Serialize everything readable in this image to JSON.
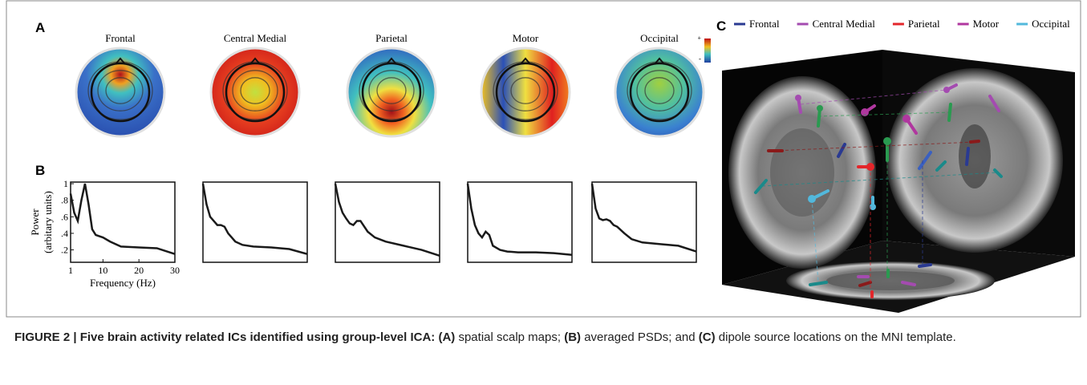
{
  "panel_a": {
    "label": "A",
    "titles": [
      "Frontal",
      "Central Medial",
      "Parietal",
      "Motor",
      "Occipital"
    ],
    "colorbar_max": "+",
    "colorbar_min": "-"
  },
  "panel_b": {
    "label": "B",
    "type": "line",
    "ylabel_line1": "Power",
    "ylabel_line2": "(arbitary units)",
    "xlabel": "Frequency (Hz)",
    "xlim": [
      1,
      30
    ],
    "ylim": [
      0.05,
      1.02
    ],
    "xticks": [
      1,
      10,
      20,
      30
    ],
    "yticks": [
      {
        "value": 0.2,
        "label": ".2"
      },
      {
        "value": 0.4,
        "label": ".4"
      },
      {
        "value": 0.6,
        "label": ".6"
      },
      {
        "value": 0.8,
        "label": ".8"
      },
      1
    ],
    "x": [
      1,
      2,
      3,
      4,
      5,
      6,
      7,
      8,
      10,
      12,
      15,
      20,
      25,
      30
    ],
    "color": "#1a1a1a",
    "series": [
      {
        "values": [
          0.88,
          0.65,
          0.55,
          0.8,
          1.0,
          0.75,
          0.45,
          0.38,
          0.35,
          0.3,
          0.24,
          0.23,
          0.22,
          0.15
        ]
      },
      {
        "values": [
          1.0,
          0.75,
          0.6,
          0.55,
          0.5,
          0.5,
          0.48,
          0.4,
          0.3,
          0.26,
          0.24,
          0.23,
          0.21,
          0.15
        ]
      },
      {
        "values": [
          1.0,
          0.78,
          0.65,
          0.58,
          0.52,
          0.5,
          0.55,
          0.55,
          0.42,
          0.35,
          0.3,
          0.25,
          0.2,
          0.13
        ]
      },
      {
        "values": [
          1.0,
          0.7,
          0.5,
          0.4,
          0.35,
          0.42,
          0.38,
          0.25,
          0.2,
          0.18,
          0.17,
          0.17,
          0.16,
          0.14
        ]
      },
      {
        "values": [
          1.0,
          0.7,
          0.58,
          0.56,
          0.57,
          0.55,
          0.5,
          0.48,
          0.4,
          0.33,
          0.29,
          0.27,
          0.25,
          0.18
        ]
      }
    ]
  },
  "panel_c": {
    "label": "C",
    "legend": [
      {
        "name": "Frontal",
        "color": "#2a3a92"
      },
      {
        "name": "Central Medial",
        "color": "#a44bb0"
      },
      {
        "name": "Parietal",
        "color": "#e3262b"
      },
      {
        "name": "Motor",
        "color": "#b0379f"
      },
      {
        "name": "Occipital",
        "color": "#52b8dc"
      }
    ]
  },
  "caption": {
    "bold_lead": "FIGURE 2 | Five brain activity related ICs identified using group-level ICA:",
    "a_ref": "(A)",
    "a_text": " spatial scalp maps; ",
    "b_ref": "(B)",
    "b_text": " averaged PSDs; and ",
    "c_ref": "(C)",
    "c_text": " dipole source locations on the MNI template."
  }
}
